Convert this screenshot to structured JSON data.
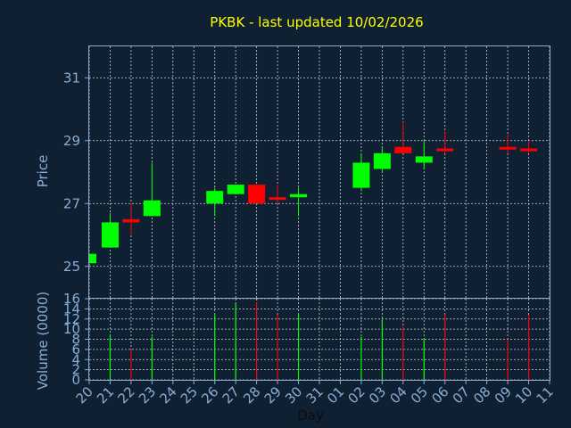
{
  "title": "PKBK - last updated 10/02/2026",
  "colors": {
    "background": "#0f2033",
    "up": "#00ff00",
    "down": "#ff0000",
    "text": "#8aaed6",
    "title": "#ffff00",
    "grid": "#c8d0d8"
  },
  "chart_data": [
    {
      "type": "candlestick",
      "ylabel": "Price",
      "ylim": [
        24.0,
        32.0
      ],
      "yticks": [
        "25",
        "27",
        "29",
        "31"
      ],
      "grid": true,
      "x": [
        "20",
        "21",
        "22",
        "23",
        "24",
        "25",
        "26",
        "27",
        "28",
        "29",
        "30",
        "31",
        "01",
        "02",
        "03",
        "04",
        "05",
        "06",
        "07",
        "08",
        "09",
        "10",
        "11"
      ],
      "candles": [
        {
          "day": "20",
          "open": 25.1,
          "close": 25.4,
          "high": 25.4,
          "low": 25.1
        },
        {
          "day": "21",
          "open": 25.6,
          "close": 26.4,
          "high": 26.7,
          "low": 25.6
        },
        {
          "day": "22",
          "open": 26.5,
          "close": 26.4,
          "high": 27.0,
          "low": 26.0
        },
        {
          "day": "23",
          "open": 26.6,
          "close": 27.1,
          "high": 28.3,
          "low": 26.6
        },
        {
          "day": "26",
          "open": 27.0,
          "close": 27.4,
          "high": 27.5,
          "low": 26.6
        },
        {
          "day": "27",
          "open": 27.3,
          "close": 27.6,
          "high": 27.6,
          "low": 27.3
        },
        {
          "day": "28",
          "open": 27.6,
          "close": 27.0,
          "high": 27.6,
          "low": 27.0
        },
        {
          "day": "29",
          "open": 27.2,
          "close": 27.15,
          "high": 27.6,
          "low": 27.0
        },
        {
          "day": "30",
          "open": 27.2,
          "close": 27.3,
          "high": 27.5,
          "low": 26.6
        },
        {
          "day": "02",
          "open": 27.5,
          "close": 28.3,
          "high": 28.6,
          "low": 27.4
        },
        {
          "day": "03",
          "open": 28.1,
          "close": 28.6,
          "high": 28.8,
          "low": 28.0
        },
        {
          "day": "04",
          "open": 28.8,
          "close": 28.6,
          "high": 29.6,
          "low": 28.6
        },
        {
          "day": "05",
          "open": 28.3,
          "close": 28.5,
          "high": 29.0,
          "low": 28.1
        },
        {
          "day": "06",
          "open": 28.75,
          "close": 28.7,
          "high": 29.3,
          "low": 28.6
        },
        {
          "day": "09",
          "open": 28.8,
          "close": 28.75,
          "high": 29.2,
          "low": 28.6
        },
        {
          "day": "10",
          "open": 28.75,
          "close": 28.7,
          "high": 29.0,
          "low": 28.6
        }
      ]
    },
    {
      "type": "bar",
      "ylabel": "Volume (0000)",
      "xlabel": "Day",
      "ylim": [
        0,
        16
      ],
      "yticks": [
        "0",
        "2",
        "4",
        "6",
        "8",
        "10",
        "12",
        "14",
        "16"
      ],
      "grid": true,
      "x": [
        "20",
        "21",
        "22",
        "23",
        "24",
        "25",
        "26",
        "27",
        "28",
        "29",
        "30",
        "31",
        "01",
        "02",
        "03",
        "04",
        "05",
        "06",
        "07",
        "08",
        "09",
        "10",
        "11"
      ],
      "bars": [
        {
          "day": "21",
          "value": 9,
          "direction": "up"
        },
        {
          "day": "22",
          "value": 6,
          "direction": "down"
        },
        {
          "day": "23",
          "value": 8.5,
          "direction": "up"
        },
        {
          "day": "26",
          "value": 12.8,
          "direction": "up"
        },
        {
          "day": "27",
          "value": 15.2,
          "direction": "up"
        },
        {
          "day": "28",
          "value": 15.3,
          "direction": "down"
        },
        {
          "day": "29",
          "value": 12.8,
          "direction": "down"
        },
        {
          "day": "30",
          "value": 13,
          "direction": "up"
        },
        {
          "day": "02",
          "value": 8.5,
          "direction": "up"
        },
        {
          "day": "03",
          "value": 12,
          "direction": "up"
        },
        {
          "day": "04",
          "value": 10.5,
          "direction": "down"
        },
        {
          "day": "05",
          "value": 8.2,
          "direction": "up"
        },
        {
          "day": "06",
          "value": 12.8,
          "direction": "down"
        },
        {
          "day": "09",
          "value": 8,
          "direction": "down"
        },
        {
          "day": "10",
          "value": 12.8,
          "direction": "down"
        }
      ]
    }
  ]
}
